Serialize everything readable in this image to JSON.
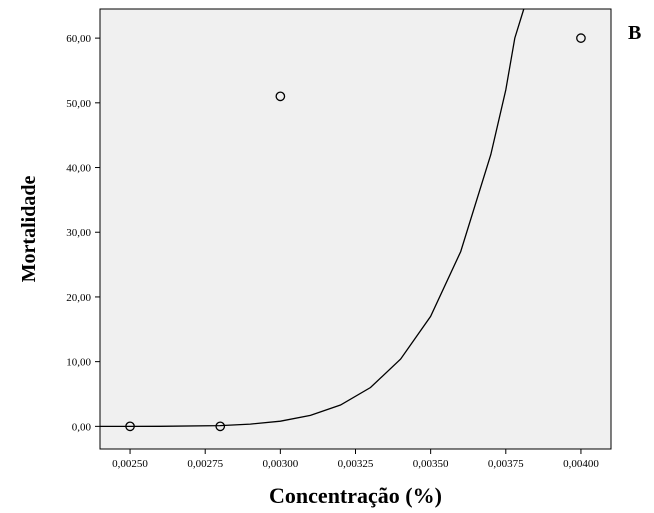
{
  "chart_data": {
    "type": "scatter",
    "panel_label": "B",
    "xlabel": "Concentração (%)",
    "ylabel": "Mortalidade",
    "xlim": [
      0.0024,
      0.0041
    ],
    "ylim": [
      -3.5,
      64.5
    ],
    "x_ticks": [
      {
        "value": 0.0025,
        "label": "0,00250"
      },
      {
        "value": 0.00275,
        "label": "0,00275"
      },
      {
        "value": 0.003,
        "label": "0,00300"
      },
      {
        "value": 0.00325,
        "label": "0,00325"
      },
      {
        "value": 0.0035,
        "label": "0,00350"
      },
      {
        "value": 0.00375,
        "label": "0,00375"
      },
      {
        "value": 0.004,
        "label": "0,00400"
      }
    ],
    "y_ticks": [
      {
        "value": 0,
        "label": "0,00"
      },
      {
        "value": 10,
        "label": "10,00"
      },
      {
        "value": 20,
        "label": "20,00"
      },
      {
        "value": 30,
        "label": "30,00"
      },
      {
        "value": 40,
        "label": "40,00"
      },
      {
        "value": 50,
        "label": "50,00"
      },
      {
        "value": 60,
        "label": "60,00"
      }
    ],
    "points": [
      {
        "x": 0.0025,
        "y": 0
      },
      {
        "x": 0.0028,
        "y": 0
      },
      {
        "x": 0.003,
        "y": 51
      },
      {
        "x": 0.004,
        "y": 60
      }
    ],
    "fit_curve": [
      {
        "x": 0.0024,
        "y": 0.0
      },
      {
        "x": 0.0026,
        "y": 0.01
      },
      {
        "x": 0.0028,
        "y": 0.12
      },
      {
        "x": 0.0029,
        "y": 0.35
      },
      {
        "x": 0.003,
        "y": 0.8
      },
      {
        "x": 0.0031,
        "y": 1.7
      },
      {
        "x": 0.0032,
        "y": 3.3
      },
      {
        "x": 0.0033,
        "y": 6.0
      },
      {
        "x": 0.0034,
        "y": 10.4
      },
      {
        "x": 0.0035,
        "y": 17.0
      },
      {
        "x": 0.0036,
        "y": 27.0
      },
      {
        "x": 0.0037,
        "y": 42.0
      },
      {
        "x": 0.00375,
        "y": 52.0
      },
      {
        "x": 0.00378,
        "y": 60.0
      },
      {
        "x": 0.00381,
        "y": 64.5
      }
    ],
    "plot_background": "#f0f0f0",
    "grid": false,
    "legend": "none"
  }
}
